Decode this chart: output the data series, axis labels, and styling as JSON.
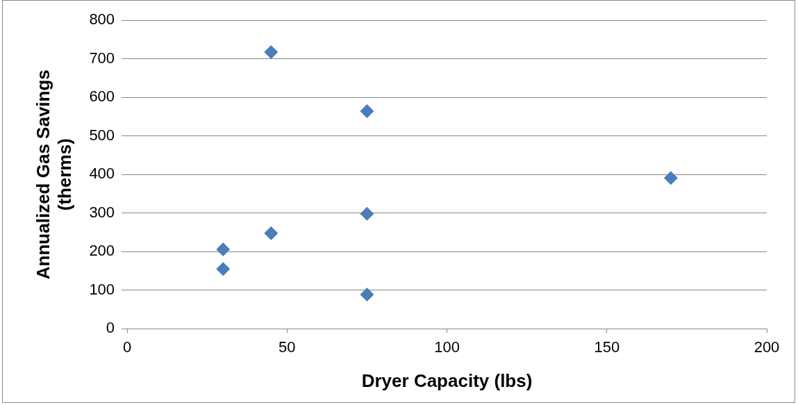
{
  "chart_data": {
    "type": "scatter",
    "xlabel": "Dryer Capacity (lbs)",
    "ylabel": "Annualized Gas Savings (therms)",
    "series": [
      {
        "color": "#4a7ebb",
        "x": [
          30,
          30,
          45,
          45,
          75,
          75,
          75,
          170
        ],
        "values": [
          206,
          155,
          717,
          248,
          564,
          298,
          89,
          391
        ]
      }
    ],
    "xlim": [
      0,
      200
    ],
    "xticks": [
      0,
      50,
      100,
      150,
      200
    ],
    "ylim": [
      0,
      800
    ],
    "yticks": [
      0,
      100,
      200,
      300,
      400,
      500,
      600,
      700,
      800
    ],
    "grid": "y",
    "marker": "diamond",
    "legend": false
  }
}
